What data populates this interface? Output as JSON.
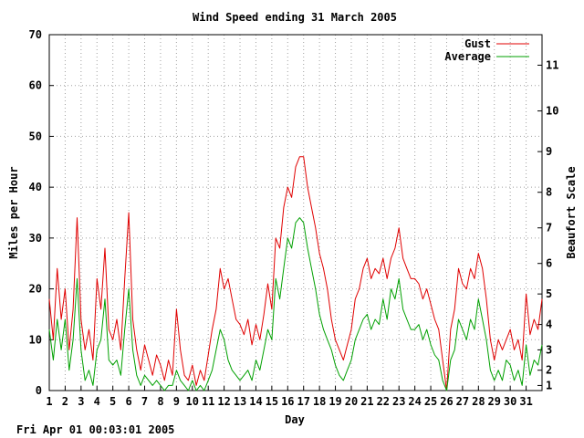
{
  "footer": {
    "timestamp": "Fri Apr 01 00:03:01 2005"
  },
  "chart_data": {
    "type": "line",
    "title": "Wind Speed ending 31 March 2005",
    "xlabel": "Day",
    "ylabel": "Miles per Hour",
    "y2label": "Beaufort Scale",
    "xlim": [
      1,
      32
    ],
    "ylim": [
      0,
      70
    ],
    "x_ticks": [
      "1",
      "2",
      "3",
      "4",
      "5",
      "6",
      "7",
      "8",
      "9",
      "10",
      "11",
      "12",
      "13",
      "14",
      "15",
      "16",
      "17",
      "18",
      "19",
      "20",
      "21",
      "22",
      "23",
      "24",
      "25",
      "26",
      "27",
      "28",
      "29",
      "30",
      "31"
    ],
    "y_ticks": [
      0,
      10,
      20,
      30,
      40,
      50,
      60,
      70
    ],
    "beaufort_ticks": [
      {
        "label": "1",
        "mph": 1
      },
      {
        "label": "2",
        "mph": 4
      },
      {
        "label": "3",
        "mph": 8
      },
      {
        "label": "4",
        "mph": 13
      },
      {
        "label": "5",
        "mph": 19
      },
      {
        "label": "6",
        "mph": 25
      },
      {
        "label": "7",
        "mph": 32
      },
      {
        "label": "8",
        "mph": 39
      },
      {
        "label": "9",
        "mph": 47
      },
      {
        "label": "10",
        "mph": 55
      },
      {
        "label": "11",
        "mph": 64
      }
    ],
    "grid": true,
    "legend_position": "top-right",
    "series": [
      {
        "name": "Gust",
        "color": "#e00000",
        "x": [
          1.0,
          1.25,
          1.5,
          1.75,
          2.0,
          2.25,
          2.5,
          2.75,
          3.0,
          3.25,
          3.5,
          3.75,
          4.0,
          4.25,
          4.5,
          4.75,
          5.0,
          5.25,
          5.5,
          5.75,
          6.0,
          6.25,
          6.5,
          6.75,
          7.0,
          7.25,
          7.5,
          7.75,
          8.0,
          8.25,
          8.5,
          8.75,
          9.0,
          9.25,
          9.5,
          9.75,
          10.0,
          10.25,
          10.5,
          10.75,
          11.0,
          11.25,
          11.5,
          11.75,
          12.0,
          12.25,
          12.5,
          12.75,
          13.0,
          13.25,
          13.5,
          13.75,
          14.0,
          14.25,
          14.5,
          14.75,
          15.0,
          15.25,
          15.5,
          15.75,
          16.0,
          16.25,
          16.5,
          16.75,
          17.0,
          17.25,
          17.5,
          17.75,
          18.0,
          18.25,
          18.5,
          18.75,
          19.0,
          19.25,
          19.5,
          19.75,
          20.0,
          20.25,
          20.5,
          20.75,
          21.0,
          21.25,
          21.5,
          21.75,
          22.0,
          22.25,
          22.5,
          22.75,
          23.0,
          23.25,
          23.5,
          23.75,
          24.0,
          24.25,
          24.5,
          24.75,
          25.0,
          25.25,
          25.5,
          25.75,
          26.0,
          26.25,
          26.5,
          26.75,
          27.0,
          27.25,
          27.5,
          27.75,
          28.0,
          28.25,
          28.5,
          28.75,
          29.0,
          29.25,
          29.5,
          29.75,
          30.0,
          30.25,
          30.5,
          30.75,
          31.0,
          31.25,
          31.5,
          31.75,
          32.0
        ],
        "values": [
          18,
          10,
          24,
          14,
          20,
          8,
          16,
          34,
          14,
          8,
          12,
          6,
          22,
          16,
          28,
          12,
          10,
          14,
          8,
          22,
          35,
          14,
          8,
          4,
          9,
          6,
          3,
          7,
          5,
          2,
          6,
          3,
          16,
          8,
          3,
          2,
          5,
          1,
          4,
          2,
          7,
          12,
          16,
          24,
          20,
          22,
          18,
          14,
          13,
          11,
          14,
          9,
          13,
          10,
          15,
          21,
          16,
          30,
          28,
          36,
          40,
          38,
          44,
          46,
          46,
          40,
          36,
          32,
          27,
          24,
          20,
          14,
          10,
          8,
          6,
          9,
          12,
          18,
          20,
          24,
          26,
          22,
          24,
          23,
          26,
          22,
          26,
          28,
          32,
          26,
          24,
          22,
          22,
          21,
          18,
          20,
          17,
          14,
          12,
          6,
          0,
          12,
          16,
          24,
          21,
          20,
          24,
          22,
          27,
          24,
          18,
          10,
          6,
          10,
          8,
          10,
          12,
          8,
          10,
          6,
          19,
          11,
          14,
          12,
          18
        ]
      },
      {
        "name": "Average",
        "color": "#00a000",
        "x": [
          1.0,
          1.25,
          1.5,
          1.75,
          2.0,
          2.25,
          2.5,
          2.75,
          3.0,
          3.25,
          3.5,
          3.75,
          4.0,
          4.25,
          4.5,
          4.75,
          5.0,
          5.25,
          5.5,
          5.75,
          6.0,
          6.25,
          6.5,
          6.75,
          7.0,
          7.25,
          7.5,
          7.75,
          8.0,
          8.25,
          8.5,
          8.75,
          9.0,
          9.25,
          9.5,
          9.75,
          10.0,
          10.25,
          10.5,
          10.75,
          11.0,
          11.25,
          11.5,
          11.75,
          12.0,
          12.25,
          12.5,
          12.75,
          13.0,
          13.25,
          13.5,
          13.75,
          14.0,
          14.25,
          14.5,
          14.75,
          15.0,
          15.25,
          15.5,
          15.75,
          16.0,
          16.25,
          16.5,
          16.75,
          17.0,
          17.25,
          17.5,
          17.75,
          18.0,
          18.25,
          18.5,
          18.75,
          19.0,
          19.25,
          19.5,
          19.75,
          20.0,
          20.25,
          20.5,
          20.75,
          21.0,
          21.25,
          21.5,
          21.75,
          22.0,
          22.25,
          22.5,
          22.75,
          23.0,
          23.25,
          23.5,
          23.75,
          24.0,
          24.25,
          24.5,
          24.75,
          25.0,
          25.25,
          25.5,
          25.75,
          26.0,
          26.25,
          26.5,
          26.75,
          27.0,
          27.25,
          27.5,
          27.75,
          28.0,
          28.25,
          28.5,
          28.75,
          29.0,
          29.25,
          29.5,
          29.75,
          30.0,
          30.25,
          30.5,
          30.75,
          31.0,
          31.25,
          31.5,
          31.75,
          32.0
        ],
        "values": [
          12,
          6,
          14,
          8,
          14,
          4,
          10,
          22,
          8,
          2,
          4,
          1,
          8,
          10,
          18,
          6,
          5,
          6,
          3,
          12,
          20,
          8,
          3,
          1,
          3,
          2,
          1,
          2,
          1,
          0,
          1,
          1,
          4,
          2,
          1,
          0,
          2,
          0,
          1,
          0,
          2,
          4,
          8,
          12,
          10,
          6,
          4,
          3,
          2,
          3,
          4,
          2,
          6,
          4,
          8,
          12,
          10,
          22,
          18,
          24,
          30,
          28,
          33,
          34,
          33,
          28,
          24,
          20,
          15,
          12,
          10,
          8,
          5,
          3,
          2,
          4,
          6,
          10,
          12,
          14,
          15,
          12,
          14,
          13,
          18,
          14,
          20,
          18,
          22,
          16,
          14,
          12,
          12,
          13,
          10,
          12,
          9,
          7,
          6,
          2,
          0,
          6,
          8,
          14,
          12,
          10,
          14,
          12,
          18,
          14,
          10,
          4,
          2,
          4,
          2,
          6,
          5,
          2,
          4,
          1,
          9,
          3,
          6,
          5,
          9
        ]
      }
    ]
  }
}
